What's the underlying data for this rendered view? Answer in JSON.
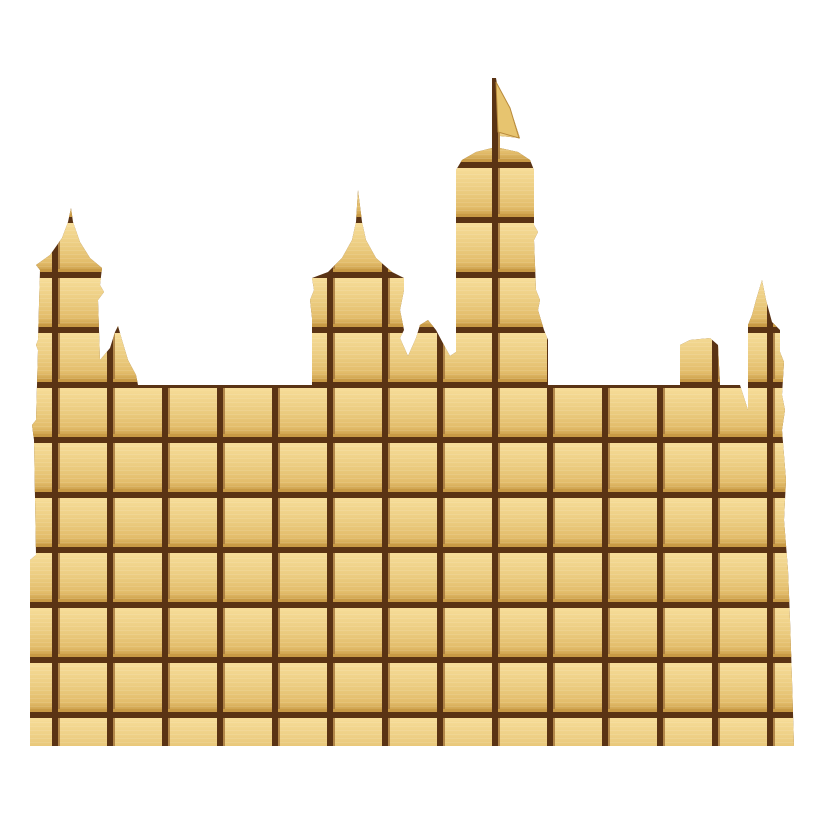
{
  "image": {
    "subject": "golden-tiled-castle-silhouette",
    "background_color": "#ffffff",
    "tile_colors": {
      "highlight": "#f6dc98",
      "light": "#eccd82",
      "mid": "#e3bd6b",
      "shade": "#c89a45",
      "grout": "#5a3314",
      "grout_light": "#a2743a"
    },
    "grid": {
      "columns": 14,
      "rows": 13
    },
    "flag": {
      "color": "#e7c46f",
      "pole_color": "#5a3314"
    }
  }
}
